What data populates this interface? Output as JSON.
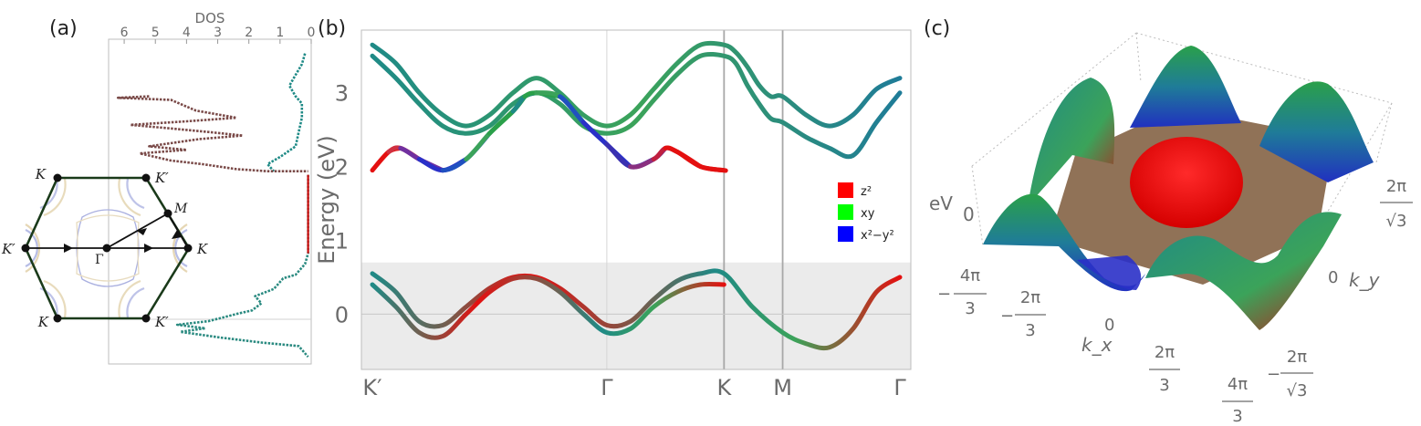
{
  "panel_labels": {
    "a": "(a)",
    "b": "(b)",
    "c": "(c)"
  },
  "chart_data": [
    {
      "type": "line",
      "panel": "(a)",
      "title": "DOS",
      "x_ticks": [
        "6",
        "5",
        "4",
        "3",
        "2",
        "1",
        "0"
      ],
      "xlim": [
        6.5,
        0
      ],
      "ylim": [
        -0.75,
        3.8
      ],
      "grid": false,
      "dos_series": [
        {
          "points": [
            [
              0.2,
              3.6
            ],
            [
              0.3,
              3.45
            ],
            [
              0.5,
              3.3
            ],
            [
              0.7,
              3.15
            ],
            [
              0.5,
              3.0
            ],
            [
              0.3,
              2.9
            ],
            [
              0.3,
              2.7
            ],
            [
              0.4,
              2.5
            ],
            [
              0.5,
              2.3
            ],
            [
              1.0,
              2.15
            ],
            [
              1.4,
              2.05
            ],
            [
              1.2,
              1.95
            ]
          ]
        },
        {
          "points": [
            [
              5.2,
              3.0
            ],
            [
              6.2,
              2.98
            ],
            [
              4.5,
              2.95
            ],
            [
              3.7,
              2.8
            ],
            [
              2.4,
              2.7
            ],
            [
              4.0,
              2.65
            ],
            [
              5.8,
              2.6
            ],
            [
              4.5,
              2.55
            ],
            [
              3.3,
              2.5
            ],
            [
              2.2,
              2.45
            ],
            [
              3.6,
              2.4
            ],
            [
              5.2,
              2.3
            ],
            [
              4.0,
              2.25
            ],
            [
              5.5,
              2.2
            ],
            [
              4.5,
              2.1
            ],
            [
              3.5,
              2.05
            ],
            [
              2.4,
              1.98
            ],
            [
              1.4,
              1.95
            ],
            [
              0.4,
              1.95
            ],
            [
              0.1,
              1.95
            ]
          ]
        },
        {
          "points": [
            [
              0.1,
              1.9
            ],
            [
              0.1,
              0.8
            ],
            [
              0.2,
              0.65
            ],
            [
              0.5,
              0.5
            ],
            [
              0.9,
              0.45
            ],
            [
              1.2,
              0.3
            ],
            [
              1.8,
              0.2
            ],
            [
              1.6,
              0.1
            ],
            [
              1.9,
              0.0
            ],
            [
              2.4,
              -0.05
            ],
            [
              3.3,
              -0.15
            ],
            [
              4.3,
              -0.2
            ],
            [
              3.4,
              -0.25
            ],
            [
              4.2,
              -0.3
            ],
            [
              2.9,
              -0.38
            ],
            [
              1.6,
              -0.45
            ],
            [
              0.4,
              -0.5
            ],
            [
              0.1,
              -0.65
            ]
          ]
        }
      ]
    },
    {
      "type": "line",
      "panel": "(b)",
      "ylabel": "Energy (eV)",
      "categories": [
        "K′",
        "Γ",
        "K",
        "M",
        "Γ"
      ],
      "category_x": [
        0,
        1.0,
        1.5,
        1.75,
        2.25
      ],
      "ylim": [
        -0.75,
        3.85
      ],
      "y_ticks": [
        0,
        1,
        2,
        3
      ],
      "shaded_band": [
        -0.75,
        0.7
      ],
      "grid": true,
      "legend_position": "right-middle",
      "legend": [
        {
          "label": "z²",
          "color": "#ff0000"
        },
        {
          "label": "xy",
          "color": "#00ff00"
        },
        {
          "label": "x²−y²",
          "color": "#0000ff"
        }
      ],
      "series": [
        {
          "x": [
            0,
            0.1,
            0.2,
            0.3,
            0.4,
            0.5,
            0.6,
            0.7,
            0.8,
            0.9,
            1.0,
            1.1,
            1.2,
            1.3,
            1.4,
            1.5,
            1.55,
            1.6,
            1.65,
            1.7,
            1.75,
            1.85,
            1.95,
            2.05,
            2.15,
            2.25
          ],
          "values": [
            3.65,
            3.4,
            3.0,
            2.7,
            2.55,
            2.7,
            3.0,
            3.2,
            3.0,
            2.7,
            2.55,
            2.7,
            3.05,
            3.4,
            3.65,
            3.65,
            3.55,
            3.35,
            3.1,
            2.95,
            2.95,
            2.7,
            2.55,
            2.7,
            3.05,
            3.2
          ]
        },
        {
          "x": [
            0,
            0.1,
            0.2,
            0.3,
            0.4,
            0.5,
            0.6,
            0.7,
            0.8,
            0.9,
            1.0,
            1.1,
            1.2,
            1.3,
            1.4,
            1.5,
            1.55,
            1.6,
            1.65,
            1.7,
            1.75,
            1.85,
            1.95,
            2.05,
            2.15,
            2.25
          ],
          "values": [
            3.5,
            3.2,
            2.85,
            2.55,
            2.45,
            2.55,
            2.85,
            3.0,
            2.85,
            2.55,
            2.45,
            2.55,
            2.9,
            3.25,
            3.5,
            3.5,
            3.4,
            3.1,
            2.85,
            2.65,
            2.6,
            2.4,
            2.25,
            2.15,
            2.6,
            3.0
          ]
        },
        {
          "x": [
            0,
            0.07,
            0.12,
            0.2,
            0.3,
            0.4,
            0.5,
            0.6,
            0.65,
            0.7,
            0.8,
            0.9,
            1.0,
            1.1,
            1.2,
            1.25,
            1.3,
            1.4,
            1.5
          ],
          "values": [
            1.95,
            2.2,
            2.25,
            2.1,
            1.95,
            2.1,
            2.45,
            2.75,
            2.95,
            3.0,
            2.95,
            2.6,
            2.3,
            2.0,
            2.1,
            2.25,
            2.2,
            2.0,
            1.95
          ]
        },
        {
          "x": [
            0,
            0.1,
            0.2,
            0.3,
            0.4,
            0.5,
            0.6,
            0.7,
            0.8,
            0.9,
            1.0,
            1.1,
            1.2,
            1.3,
            1.4,
            1.5,
            1.62,
            1.75,
            1.85,
            1.95,
            2.05,
            2.15,
            2.25
          ],
          "values": [
            0.55,
            0.3,
            -0.1,
            -0.15,
            0.1,
            0.35,
            0.5,
            0.5,
            0.35,
            0.1,
            -0.15,
            -0.1,
            0.2,
            0.45,
            0.55,
            0.55,
            0.1,
            -0.25,
            -0.4,
            -0.45,
            -0.2,
            0.3,
            0.5
          ]
        },
        {
          "x": [
            0,
            0.1,
            0.2,
            0.3,
            0.4,
            0.5,
            0.6,
            0.7,
            0.8,
            0.9,
            1.0,
            1.1,
            1.2,
            1.3,
            1.4,
            1.5
          ],
          "values": [
            0.4,
            0.1,
            -0.25,
            -0.3,
            0.0,
            0.3,
            0.48,
            0.48,
            0.3,
            0.0,
            -0.25,
            -0.2,
            0.1,
            0.3,
            0.4,
            0.4
          ]
        }
      ]
    },
    {
      "type": "area",
      "panel": "(c)",
      "zlabel": "eV",
      "z_ticks": [
        "0"
      ],
      "xlabel": "k_x",
      "ylabel": "k_y",
      "x_ticks": [
        "−4π/3",
        "−2π/3",
        "0",
        "2π/3",
        "4π/3"
      ],
      "y_ticks": [
        "−2π/√3",
        "0",
        "2π/√3"
      ]
    }
  ],
  "panel_a_points": {
    "K": "K",
    "Kp": "K′",
    "M": "M",
    "Gamma": "Γ"
  },
  "panel_c_ticks": {
    "x_minus_43_num": "4π",
    "x_minus_43_den": "3",
    "x_minus_43_sign": "−",
    "x_minus_23_num": "2π",
    "x_minus_23_den": "3",
    "x_minus_23_sign": "−",
    "x_zero": "0",
    "x_plus_23_num": "2π",
    "x_plus_23_den": "3",
    "x_plus_43_num": "4π",
    "x_plus_43_den": "3",
    "y_plus_num": "2π",
    "y_plus_den": "√3",
    "y_zero": "0",
    "y_minus_sign": "−",
    "y_minus_num": "2π",
    "y_minus_den": "√3"
  }
}
